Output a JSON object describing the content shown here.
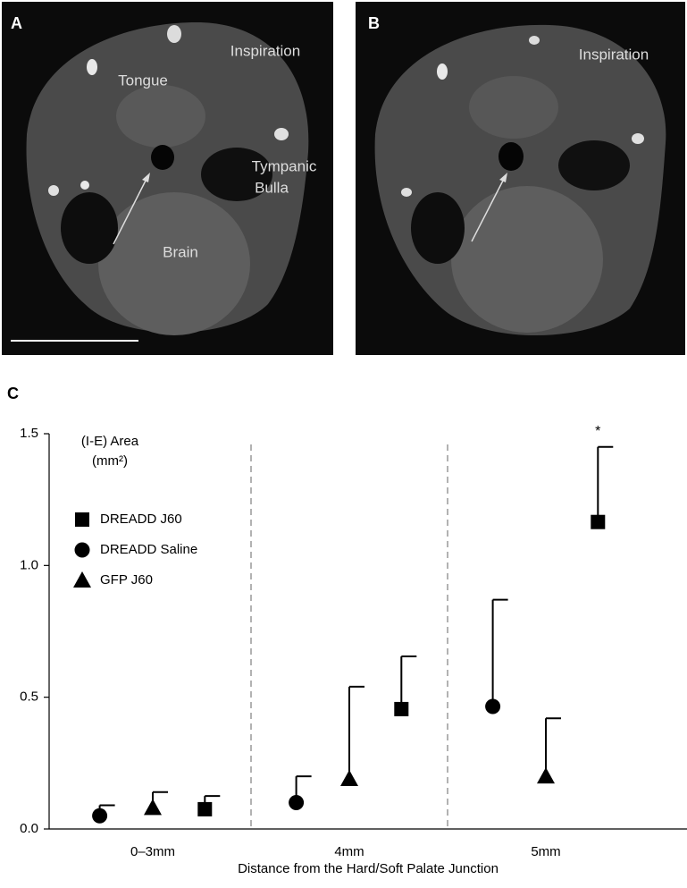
{
  "panels": {
    "a": {
      "label": "A",
      "texts": [
        "Tongue",
        "Inspiration",
        "Tympanic",
        "Bulla",
        "Brain"
      ]
    },
    "b": {
      "label": "B",
      "texts": [
        "Inspiration"
      ]
    }
  },
  "chart_data": {
    "type": "scatter",
    "panel_label": "C",
    "xlabel": "Distance from the Hard/Soft Palate Junction",
    "ylabel": [
      "(I-E) Area",
      "(mm²)"
    ],
    "categories": [
      "0–3mm",
      "4mm",
      "5mm"
    ],
    "series": [
      {
        "name": "DREADD J60",
        "marker": "square",
        "color": "#000000",
        "values": [
          0.075,
          0.455,
          1.165
        ],
        "errors": [
          0.05,
          0.2,
          0.285
        ]
      },
      {
        "name": "DREADD Saline",
        "marker": "circle",
        "color": "#000000",
        "values": [
          0.05,
          0.1,
          0.465
        ],
        "errors": [
          0.04,
          0.1,
          0.405
        ]
      },
      {
        "name": "GFP J60",
        "marker": "triangle",
        "color": "#000000",
        "values": [
          0.08,
          0.19,
          0.2
        ],
        "errors": [
          0.06,
          0.35,
          0.22
        ]
      }
    ],
    "annotation": "*",
    "ylim": [
      0,
      1.5
    ],
    "yticks": [
      {
        "value": 0,
        "label": "0.0"
      },
      {
        "value": 0.5,
        "label": "0.5"
      },
      {
        "value": 1,
        "label": "1.0"
      },
      {
        "value": 1.5,
        "label": "1.5"
      }
    ],
    "group_separators": true
  }
}
